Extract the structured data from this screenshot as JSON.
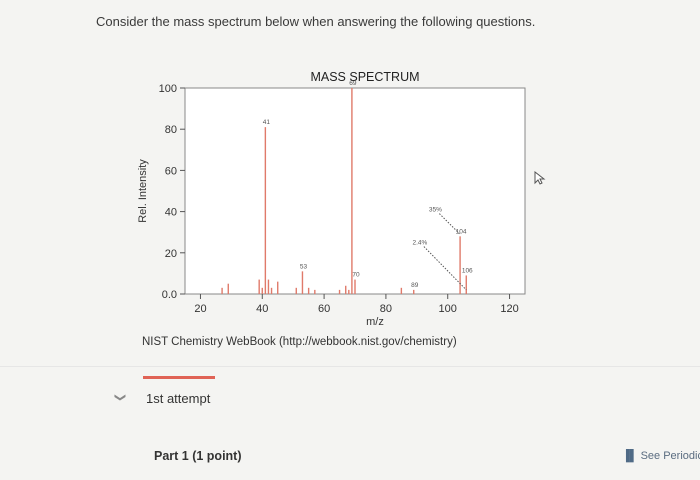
{
  "question": {
    "text": "Consider the mass spectrum below when answering the following questions."
  },
  "source": {
    "text": "NIST Chemistry WebBook (http://webbook.nist.gov/chemistry)"
  },
  "attempt": {
    "label": "1st attempt"
  },
  "part": {
    "label": "Part 1   (1 point)"
  },
  "periodic": {
    "label": "See Periodic T"
  },
  "chart_data": {
    "type": "bar",
    "title": "MASS SPECTRUM",
    "xlabel": "m/z",
    "ylabel": "Rel. Intensity",
    "xlim": [
      15,
      125
    ],
    "ylim": [
      0,
      100
    ],
    "xticks": [
      20,
      40,
      60,
      80,
      100,
      120
    ],
    "yticks": [
      "0.0",
      "20",
      "40",
      "60",
      "80",
      "100"
    ],
    "peak_color": "#e07a6a",
    "peaks": [
      {
        "x": 27,
        "y": 3
      },
      {
        "x": 29,
        "y": 5
      },
      {
        "x": 39,
        "y": 7
      },
      {
        "x": 40,
        "y": 3
      },
      {
        "x": 41,
        "y": 81,
        "label": "41"
      },
      {
        "x": 42,
        "y": 7
      },
      {
        "x": 43,
        "y": 3
      },
      {
        "x": 45,
        "y": 6
      },
      {
        "x": 51,
        "y": 3
      },
      {
        "x": 53,
        "y": 11,
        "label": "53"
      },
      {
        "x": 55,
        "y": 3
      },
      {
        "x": 57,
        "y": 2
      },
      {
        "x": 65,
        "y": 2
      },
      {
        "x": 67,
        "y": 4
      },
      {
        "x": 68,
        "y": 2
      },
      {
        "x": 69,
        "y": 100,
        "label": "69"
      },
      {
        "x": 70,
        "y": 7,
        "label": "70"
      },
      {
        "x": 85,
        "y": 3
      },
      {
        "x": 89,
        "y": 2,
        "label": "89"
      },
      {
        "x": 104,
        "y": 28,
        "label": "104"
      },
      {
        "x": 106,
        "y": 9,
        "label": "106"
      }
    ],
    "annotations": [
      {
        "text": "35%",
        "x": 96,
        "y": 40
      },
      {
        "text": "2.4%",
        "x": 91,
        "y": 24
      }
    ]
  }
}
